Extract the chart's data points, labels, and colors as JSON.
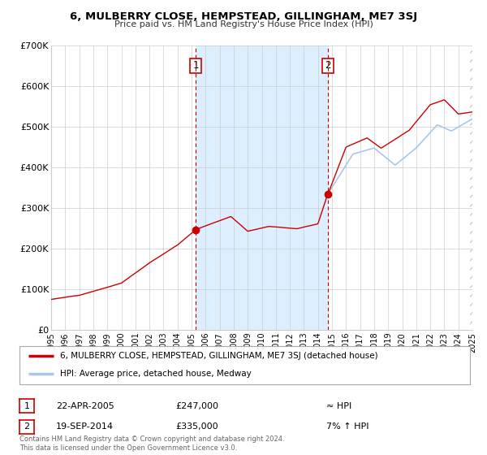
{
  "title": "6, MULBERRY CLOSE, HEMPSTEAD, GILLINGHAM, ME7 3SJ",
  "subtitle": "Price paid vs. HM Land Registry's House Price Index (HPI)",
  "legend_line1": "6, MULBERRY CLOSE, HEMPSTEAD, GILLINGHAM, ME7 3SJ (detached house)",
  "legend_line2": "HPI: Average price, detached house, Medway",
  "annotation1_date": "22-APR-2005",
  "annotation1_price": "£247,000",
  "annotation1_hpi": "≈ HPI",
  "annotation2_date": "19-SEP-2014",
  "annotation2_price": "£335,000",
  "annotation2_hpi": "7% ↑ HPI",
  "footnote": "Contains HM Land Registry data © Crown copyright and database right 2024.\nThis data is licensed under the Open Government Licence v3.0.",
  "sale1_year": 2005.3,
  "sale1_value": 247000,
  "sale2_year": 2014.72,
  "sale2_value": 335000,
  "hpi_color": "#a8c8e8",
  "price_color": "#cc0000",
  "marker_color": "#cc0000",
  "shade_color": "#ddeeff",
  "vline_color": "#cc0000",
  "grid_color": "#cccccc",
  "background_color": "#ffffff",
  "ylim_max": 700000,
  "xlim_min": 1995,
  "xlim_max": 2025,
  "hpi_start_year": 2014.72,
  "yticks": [
    0,
    100000,
    200000,
    300000,
    400000,
    500000,
    600000,
    700000
  ],
  "ytick_labels": [
    "£0",
    "£100K",
    "£200K",
    "£300K",
    "£400K",
    "£500K",
    "£600K",
    "£700K"
  ]
}
